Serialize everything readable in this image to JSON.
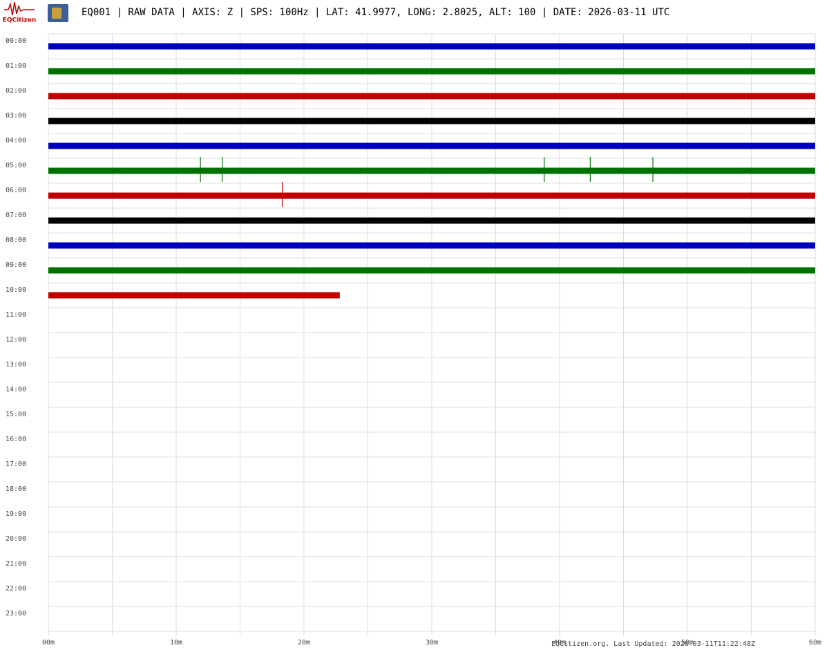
{
  "logo_text": "EQCitizen",
  "chart_data": {
    "type": "helicorder",
    "title": "EQ001 | RAW DATA | AXIS: Z | SPS: 100Hz | LAT: 41.9977, LONG: 2.8025, ALT: 100 | DATE: 2026-03-11 UTC",
    "footer": "EQCitizen.org. Last Updated: 2026-03-11T11:22:48Z",
    "categories": [
      "00:00",
      "01:00",
      "02:00",
      "03:00",
      "04:00",
      "05:00",
      "06:00",
      "07:00",
      "08:00",
      "09:00",
      "10:00",
      "11:00",
      "12:00",
      "13:00",
      "14:00",
      "15:00",
      "16:00",
      "17:00",
      "18:00",
      "19:00",
      "20:00",
      "21:00",
      "22:00",
      "23:00"
    ],
    "series": [
      {
        "color": "#0000c0",
        "end": 60,
        "spikes": []
      },
      {
        "color": "#007000",
        "end": 60,
        "spikes": []
      },
      {
        "color": "#c00000",
        "end": 60,
        "spikes": []
      },
      {
        "color": "#000000",
        "end": 60,
        "spikes": []
      },
      {
        "color": "#0000c0",
        "end": 60,
        "spikes": []
      },
      {
        "color": "#007000",
        "end": 60,
        "spikes": [
          11.9,
          13.6,
          38.8,
          42.4,
          47.3
        ]
      },
      {
        "color": "#c00000",
        "end": 60,
        "spikes": [
          18.3
        ]
      },
      {
        "color": "#000000",
        "end": 60,
        "spikes": []
      },
      {
        "color": "#0000c0",
        "end": 60,
        "spikes": []
      },
      {
        "color": "#007000",
        "end": 60,
        "spikes": []
      },
      {
        "color": "#c00000",
        "end": 22.8,
        "spikes": []
      }
    ],
    "xlim": [
      0,
      60
    ],
    "xticks": [
      {
        "value": 0,
        "label": "00m"
      },
      {
        "value": 10,
        "label": "10m"
      },
      {
        "value": 20,
        "label": "20m"
      },
      {
        "value": 30,
        "label": "30m"
      },
      {
        "value": 40,
        "label": "40m"
      },
      {
        "value": 50,
        "label": "50m"
      },
      {
        "value": 60,
        "label": "60m"
      }
    ],
    "xgrid": [
      0,
      5,
      10,
      15,
      20,
      25,
      30,
      35,
      40,
      45,
      50,
      55,
      60
    ],
    "grid": true
  }
}
